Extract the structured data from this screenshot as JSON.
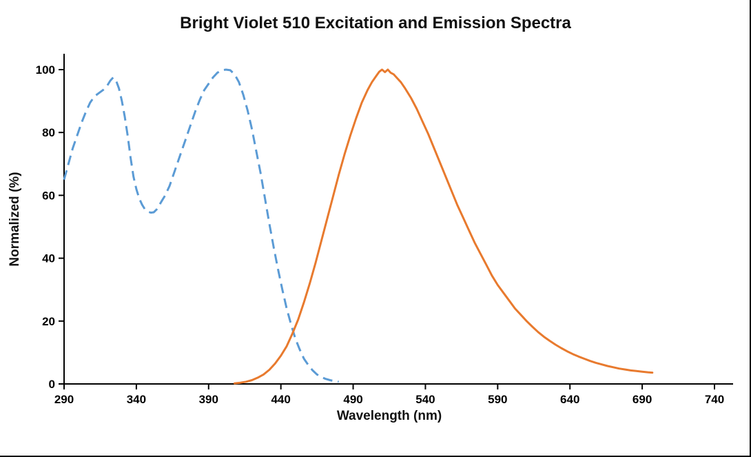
{
  "title": "Bright Violet 510 Excitation and Emission Spectra",
  "chart_data": {
    "type": "line",
    "title": "Bright Violet 510 Excitation and Emission Spectra",
    "xlabel": "Wavelength (nm)",
    "ylabel": "Normalized (%)",
    "xlim": [
      290,
      740
    ],
    "ylim": [
      0,
      100
    ],
    "x_ticks": [
      290,
      340,
      390,
      440,
      490,
      540,
      590,
      640,
      690,
      740
    ],
    "y_ticks": [
      0,
      20,
      40,
      60,
      80,
      100
    ],
    "grid": false,
    "legend": "none",
    "series": [
      {
        "name": "Excitation",
        "color": "#5b9bd5",
        "style": "dashed",
        "points": [
          [
            290,
            65
          ],
          [
            293,
            70
          ],
          [
            296,
            75
          ],
          [
            299,
            79
          ],
          [
            302,
            83
          ],
          [
            305,
            86.5
          ],
          [
            308,
            89.5
          ],
          [
            311,
            91.5
          ],
          [
            314,
            92.5
          ],
          [
            317,
            93.5
          ],
          [
            320,
            95
          ],
          [
            322,
            96.5
          ],
          [
            324,
            97.5
          ],
          [
            326,
            96.5
          ],
          [
            328,
            94
          ],
          [
            330,
            90
          ],
          [
            332,
            85
          ],
          [
            334,
            79
          ],
          [
            336,
            72
          ],
          [
            338,
            66
          ],
          [
            340,
            62
          ],
          [
            342,
            59
          ],
          [
            344,
            57
          ],
          [
            346,
            55.5
          ],
          [
            348,
            54.8
          ],
          [
            350,
            54.5
          ],
          [
            352,
            54.6
          ],
          [
            354,
            55.5
          ],
          [
            356,
            57
          ],
          [
            358,
            58.5
          ],
          [
            360,
            60
          ],
          [
            363,
            63
          ],
          [
            366,
            67
          ],
          [
            369,
            71
          ],
          [
            372,
            75
          ],
          [
            375,
            79
          ],
          [
            378,
            83
          ],
          [
            381,
            87
          ],
          [
            384,
            90.5
          ],
          [
            387,
            93.5
          ],
          [
            390,
            95.5
          ],
          [
            393,
            97.5
          ],
          [
            396,
            99
          ],
          [
            399,
            99.8
          ],
          [
            402,
            100
          ],
          [
            405,
            99.8
          ],
          [
            408,
            98.5
          ],
          [
            411,
            96
          ],
          [
            414,
            92
          ],
          [
            417,
            87
          ],
          [
            420,
            81
          ],
          [
            423,
            74
          ],
          [
            426,
            67
          ],
          [
            429,
            59
          ],
          [
            432,
            51
          ],
          [
            435,
            43.5
          ],
          [
            438,
            36.5
          ],
          [
            441,
            30
          ],
          [
            444,
            24
          ],
          [
            447,
            19
          ],
          [
            450,
            14.5
          ],
          [
            453,
            11
          ],
          [
            456,
            8
          ],
          [
            459,
            6
          ],
          [
            462,
            4.3
          ],
          [
            465,
            3
          ],
          [
            468,
            2.2
          ],
          [
            471,
            1.6
          ],
          [
            474,
            1.2
          ],
          [
            477,
            0.9
          ],
          [
            480,
            0.7
          ]
        ]
      },
      {
        "name": "Emission",
        "color": "#e87a2e",
        "style": "solid",
        "points": [
          [
            408,
            0.2
          ],
          [
            412,
            0.4
          ],
          [
            416,
            0.7
          ],
          [
            420,
            1.2
          ],
          [
            424,
            2
          ],
          [
            428,
            3
          ],
          [
            432,
            4.5
          ],
          [
            436,
            6.5
          ],
          [
            440,
            9
          ],
          [
            444,
            12
          ],
          [
            448,
            16
          ],
          [
            452,
            20.5
          ],
          [
            456,
            26
          ],
          [
            460,
            32
          ],
          [
            464,
            38.5
          ],
          [
            468,
            45.5
          ],
          [
            472,
            52.5
          ],
          [
            476,
            59.5
          ],
          [
            480,
            66.5
          ],
          [
            484,
            73
          ],
          [
            488,
            79
          ],
          [
            492,
            84.5
          ],
          [
            496,
            89.5
          ],
          [
            500,
            93.5
          ],
          [
            503,
            96
          ],
          [
            506,
            98
          ],
          [
            508,
            99.3
          ],
          [
            510,
            100
          ],
          [
            512,
            99.2
          ],
          [
            514,
            100
          ],
          [
            516,
            99
          ],
          [
            518,
            98.5
          ],
          [
            520,
            97.5
          ],
          [
            523,
            96
          ],
          [
            526,
            94
          ],
          [
            530,
            91
          ],
          [
            534,
            87.5
          ],
          [
            538,
            83.5
          ],
          [
            542,
            79.5
          ],
          [
            546,
            75
          ],
          [
            550,
            70.5
          ],
          [
            554,
            66
          ],
          [
            558,
            61.5
          ],
          [
            562,
            57
          ],
          [
            566,
            53
          ],
          [
            570,
            49
          ],
          [
            574,
            45
          ],
          [
            578,
            41.5
          ],
          [
            582,
            38
          ],
          [
            586,
            34.5
          ],
          [
            590,
            31.5
          ],
          [
            594,
            29
          ],
          [
            598,
            26.5
          ],
          [
            602,
            24
          ],
          [
            606,
            22
          ],
          [
            610,
            20
          ],
          [
            614,
            18.2
          ],
          [
            618,
            16.5
          ],
          [
            622,
            15
          ],
          [
            626,
            13.7
          ],
          [
            630,
            12.5
          ],
          [
            634,
            11.4
          ],
          [
            638,
            10.4
          ],
          [
            642,
            9.5
          ],
          [
            646,
            8.7
          ],
          [
            650,
            8
          ],
          [
            654,
            7.3
          ],
          [
            658,
            6.7
          ],
          [
            662,
            6.2
          ],
          [
            666,
            5.7
          ],
          [
            670,
            5.3
          ],
          [
            674,
            4.9
          ],
          [
            678,
            4.6
          ],
          [
            682,
            4.3
          ],
          [
            686,
            4.1
          ],
          [
            690,
            3.9
          ],
          [
            694,
            3.7
          ],
          [
            697,
            3.6
          ]
        ]
      }
    ]
  }
}
